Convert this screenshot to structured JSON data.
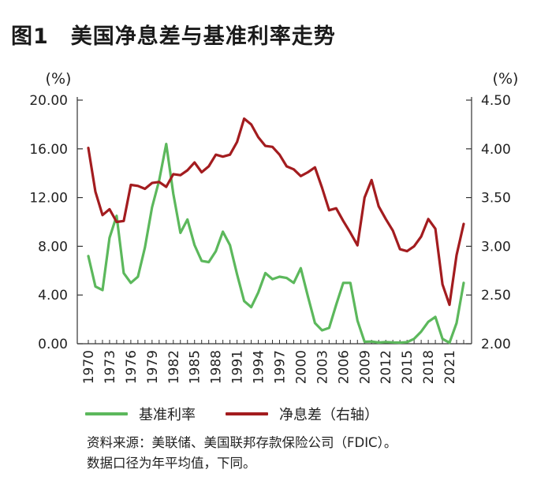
{
  "figure": {
    "title": "图1　美国净息差与基准利率走势",
    "source_line1": "资料来源：美联储、美国联邦存款保险公司（FDIC）。",
    "source_line2": "数据口径为年平均值，下同。"
  },
  "colors": {
    "series_green": "#5cb85c",
    "series_red": "#a31c1f"
  },
  "chart_data": {
    "type": "line",
    "left_axis": {
      "unit": "(%)",
      "ylim": [
        0,
        20
      ],
      "ticks": [
        "0.00",
        "4.00",
        "8.00",
        "12.00",
        "16.00",
        "20.00"
      ],
      "tick_values": [
        0,
        4,
        8,
        12,
        16,
        20
      ]
    },
    "right_axis": {
      "unit": "(%)",
      "ylim": [
        2.0,
        4.5
      ],
      "ticks": [
        "2.00",
        "2.50",
        "3.00",
        "3.50",
        "4.00",
        "4.50"
      ],
      "tick_values": [
        2.0,
        2.5,
        3.0,
        3.5,
        4.0,
        4.5
      ]
    },
    "x_tick_labels": [
      "1970",
      "1973",
      "1976",
      "1979",
      "1982",
      "1985",
      "1988",
      "1991",
      "1994",
      "1997",
      "2000",
      "2003",
      "2006",
      "2009",
      "2012",
      "2015",
      "2018",
      "2021"
    ],
    "x": [
      1970,
      1971,
      1972,
      1973,
      1974,
      1975,
      1976,
      1977,
      1978,
      1979,
      1980,
      1981,
      1982,
      1983,
      1984,
      1985,
      1986,
      1987,
      1988,
      1989,
      1990,
      1991,
      1992,
      1993,
      1994,
      1995,
      1996,
      1997,
      1998,
      1999,
      2000,
      2001,
      2002,
      2003,
      2004,
      2005,
      2006,
      2007,
      2008,
      2009,
      2010,
      2011,
      2012,
      2013,
      2014,
      2015,
      2016,
      2017,
      2018,
      2019,
      2020,
      2021,
      2022,
      2023
    ],
    "series": [
      {
        "name": "基准利率",
        "axis": "left",
        "values": [
          7.2,
          4.7,
          4.4,
          8.7,
          10.5,
          5.8,
          5.0,
          5.5,
          7.9,
          11.2,
          13.4,
          16.4,
          12.3,
          9.1,
          10.2,
          8.1,
          6.8,
          6.7,
          7.6,
          9.2,
          8.1,
          5.7,
          3.5,
          3.0,
          4.2,
          5.8,
          5.3,
          5.5,
          5.4,
          5.0,
          6.2,
          3.9,
          1.7,
          1.1,
          1.3,
          3.2,
          5.0,
          5.0,
          1.9,
          0.16,
          0.18,
          0.1,
          0.14,
          0.11,
          0.09,
          0.13,
          0.4,
          1.0,
          1.8,
          2.2,
          0.4,
          0.08,
          1.7,
          5.0
        ]
      },
      {
        "name": "净息差（右轴）",
        "axis": "right",
        "values": [
          4.01,
          3.56,
          3.32,
          3.38,
          3.25,
          3.26,
          3.63,
          3.62,
          3.59,
          3.65,
          3.66,
          3.61,
          3.74,
          3.73,
          3.78,
          3.86,
          3.76,
          3.82,
          3.94,
          3.92,
          3.94,
          4.07,
          4.31,
          4.25,
          4.12,
          4.03,
          4.02,
          3.94,
          3.82,
          3.79,
          3.72,
          3.76,
          3.81,
          3.6,
          3.37,
          3.39,
          3.26,
          3.14,
          3.01,
          3.5,
          3.68,
          3.41,
          3.28,
          3.16,
          2.97,
          2.95,
          3.0,
          3.1,
          3.28,
          3.18,
          2.61,
          2.4,
          2.91,
          3.23
        ]
      }
    ]
  }
}
